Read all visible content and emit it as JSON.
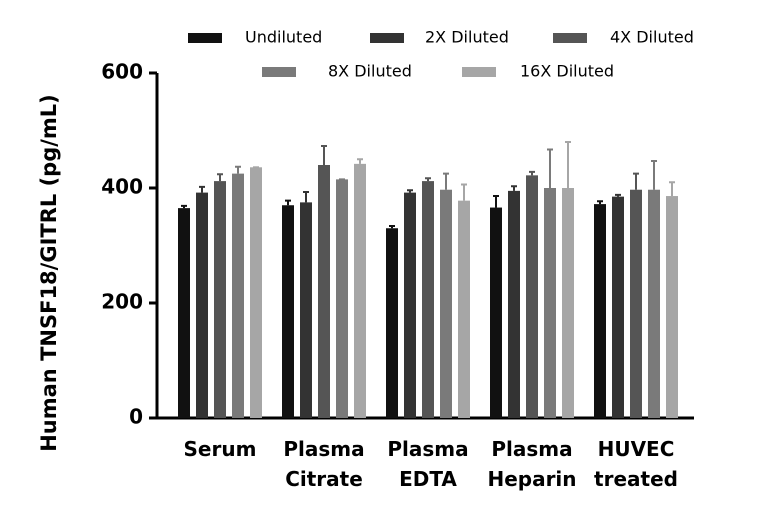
{
  "chart_data": {
    "type": "bar",
    "y_label": "Human TNSF18/GITRL (pg/mL)",
    "categories": [
      "Serum",
      "Plasma Citrate",
      "Plasma EDTA",
      "Plasma Heparin",
      "HUVEC treated"
    ],
    "series": [
      {
        "name": "Undiluted",
        "color": "#111111",
        "values": [
          365,
          370,
          330,
          366,
          372
        ],
        "errors": [
          4,
          8,
          4,
          20,
          5
        ]
      },
      {
        "name": "2X Diluted",
        "color": "#333333",
        "values": [
          392,
          375,
          392,
          395,
          385
        ],
        "errors": [
          10,
          18,
          4,
          8,
          3
        ]
      },
      {
        "name": "4X Diluted",
        "color": "#555555",
        "values": [
          412,
          440,
          412,
          422,
          397
        ],
        "errors": [
          12,
          33,
          5,
          6,
          28
        ]
      },
      {
        "name": "8X Diluted",
        "color": "#7a7a7a",
        "values": [
          425,
          415,
          397,
          400,
          397
        ],
        "errors": [
          12,
          0,
          28,
          67,
          50
        ]
      },
      {
        "name": "16X Diluted",
        "color": "#a6a6a6",
        "values": [
          436,
          442,
          378,
          400,
          386
        ],
        "errors": [
          0,
          8,
          28,
          80,
          24
        ]
      }
    ],
    "ylim": [
      0,
      600
    ],
    "yticks": [
      0,
      200,
      400,
      600
    ]
  }
}
